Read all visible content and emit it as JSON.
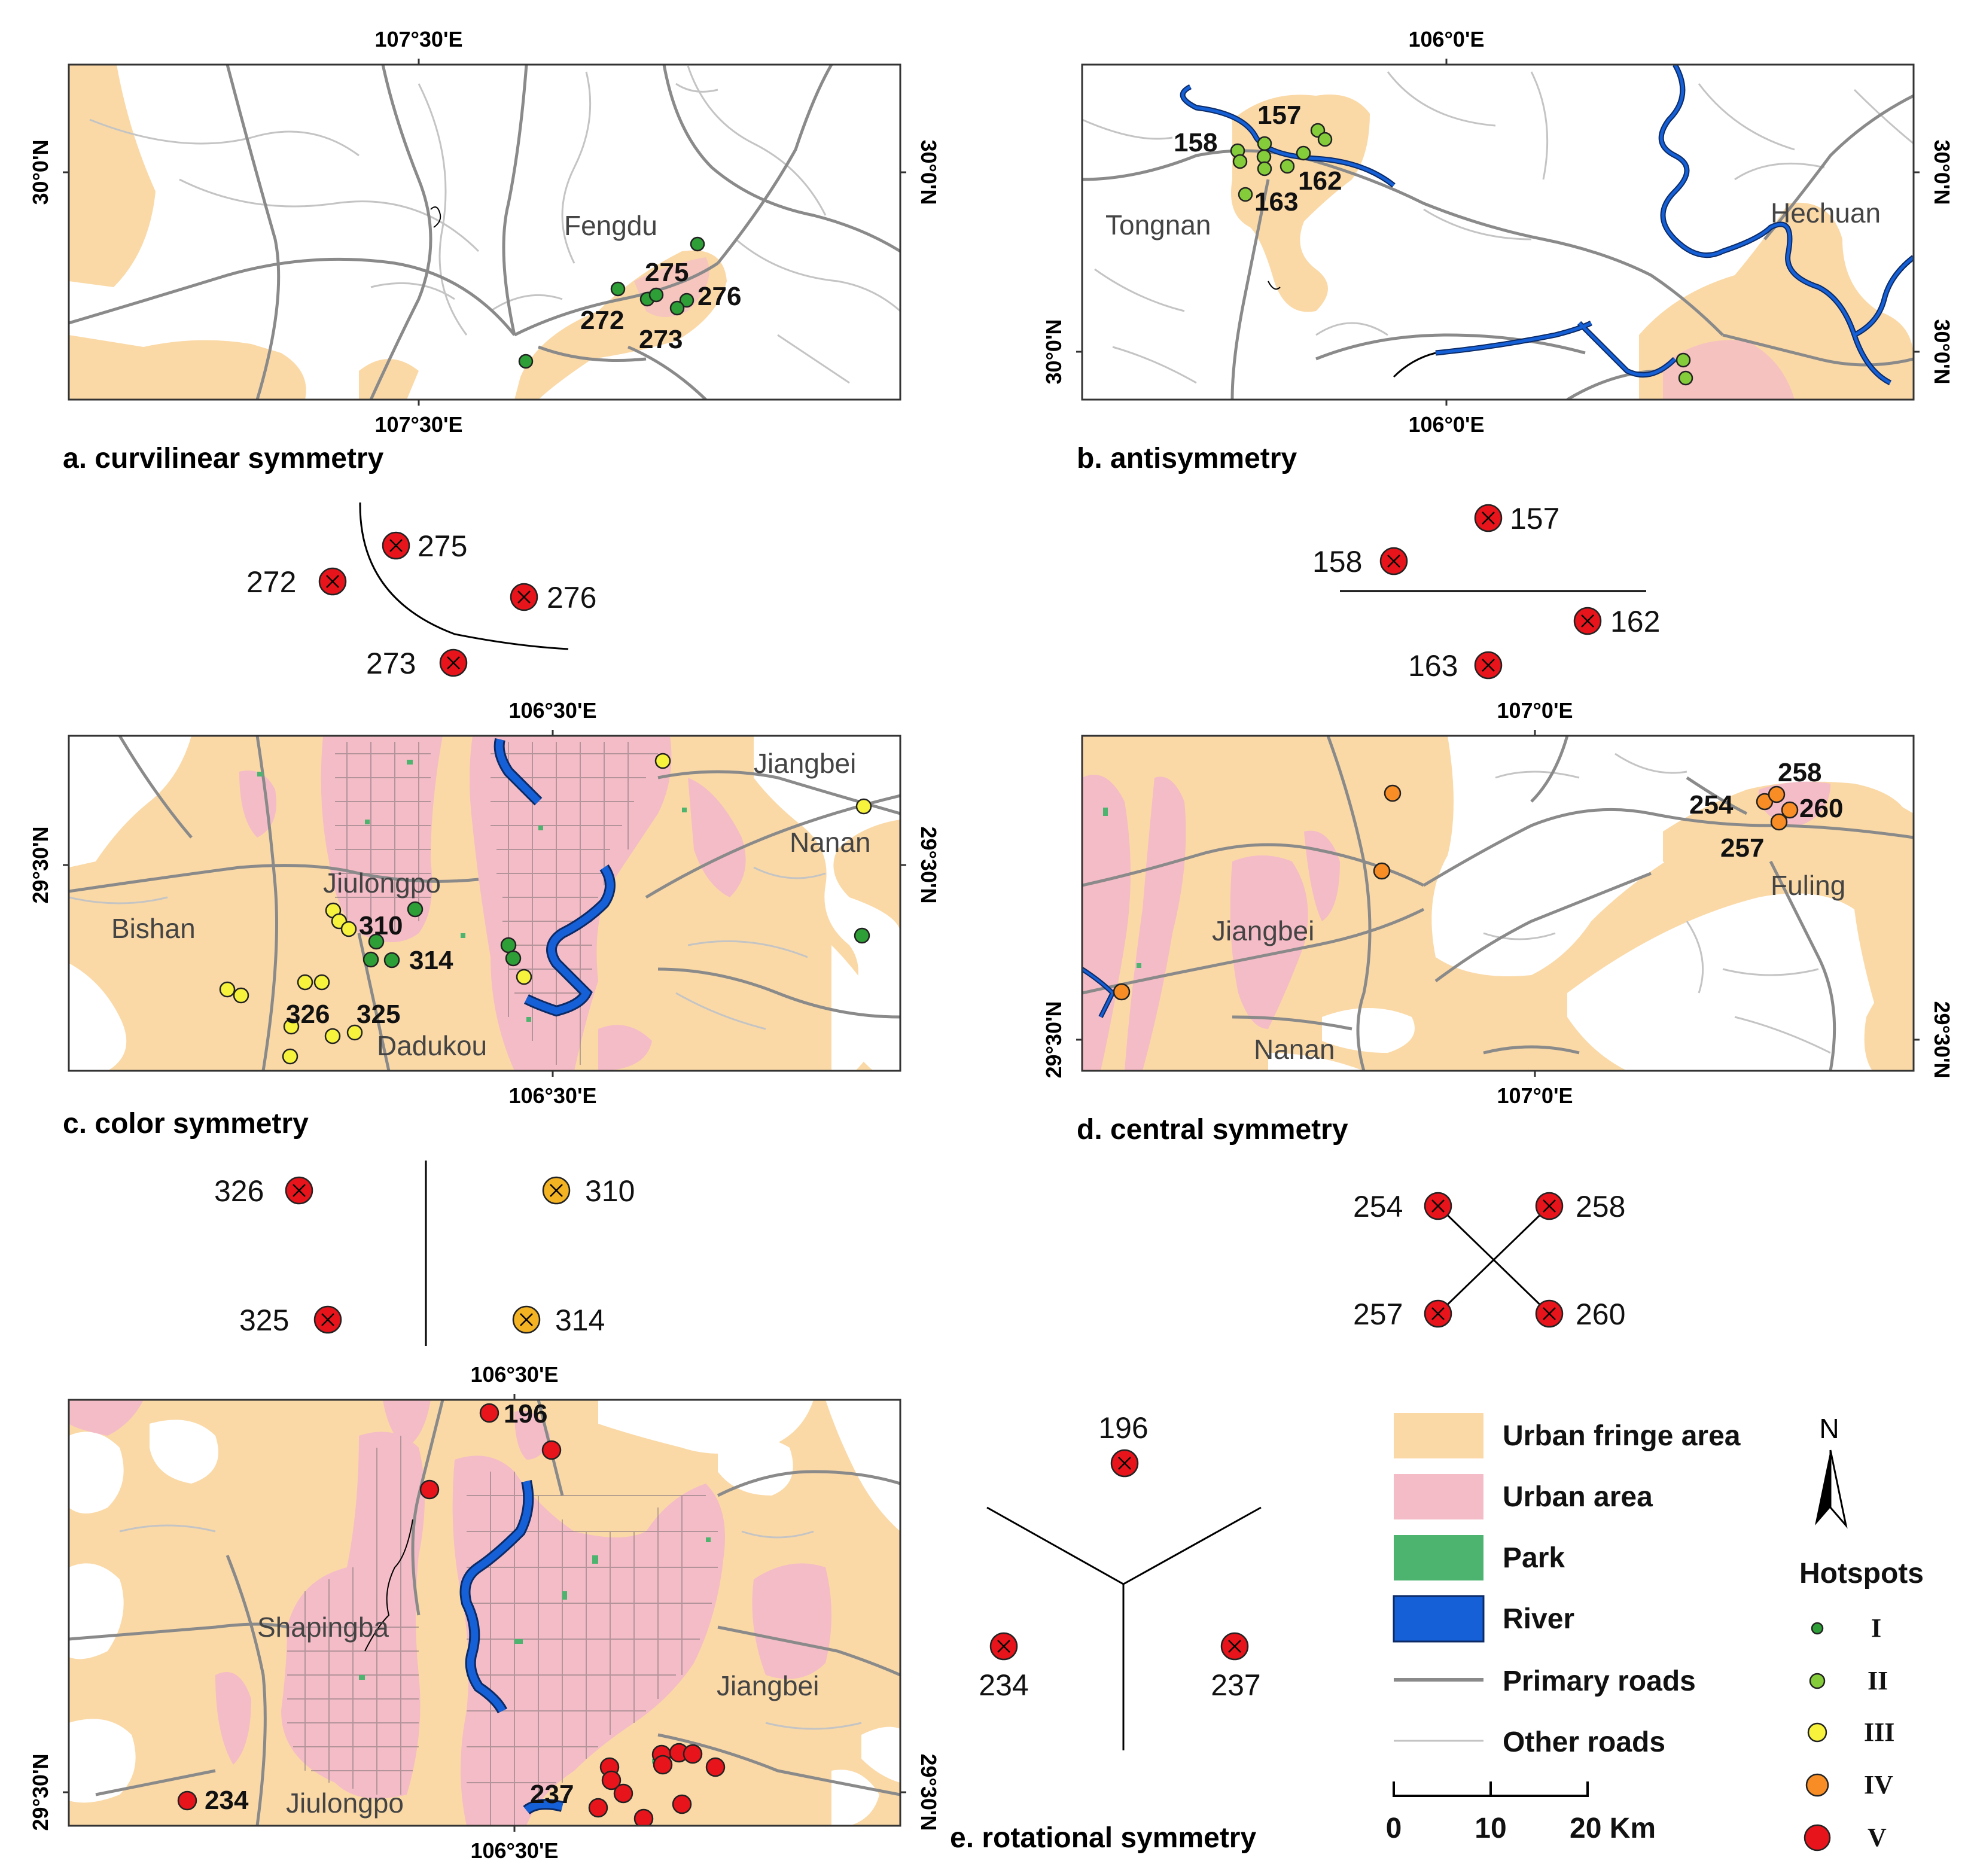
{
  "panels": {
    "a": {
      "caption": "a. curvilinear symmetry",
      "top_lon": "107°30'E",
      "bottom_lon": "107°30'E",
      "left_lat": "30°0'N",
      "right_lat": "30°0'N",
      "place_labels": [
        "Fengdu"
      ],
      "hotspot_labels": [
        "275",
        "276",
        "272",
        "273"
      ],
      "diagram_labels": [
        "275",
        "272",
        "276",
        "273"
      ]
    },
    "b": {
      "caption": "b. antisymmetry",
      "top_lon": "106°0'E",
      "bottom_lon": "106°0'E",
      "left_lat": "30°0'N",
      "right_lat_top": "30°0'N",
      "right_lat_bottom": "30°0'N",
      "place_labels": [
        "Tongnan",
        "Hechuan"
      ],
      "hotspot_labels": [
        "157",
        "158",
        "162",
        "163"
      ],
      "diagram_labels": [
        "157",
        "158",
        "162",
        "163"
      ]
    },
    "c": {
      "caption": "c. color symmetry",
      "top_lon": "106°30'E",
      "bottom_lon": "106°30'E",
      "left_lat": "29°30'N",
      "right_lat": "29°30'N",
      "place_labels": [
        "Jiangbei",
        "Jiulongpo",
        "Bishan",
        "Nanan",
        "Dadukou"
      ],
      "hotspot_labels": [
        "310",
        "314",
        "326",
        "325"
      ],
      "diagram_labels": [
        "326",
        "310",
        "325",
        "314"
      ]
    },
    "d": {
      "caption": "d. central symmetry",
      "top_lon": "107°0'E",
      "bottom_lon": "107°0'E",
      "left_lat": "29°30'N",
      "right_lat": "29°30'N",
      "place_labels": [
        "Jiangbei",
        "Fuling",
        "Nanan"
      ],
      "hotspot_labels": [
        "258",
        "254",
        "260",
        "257"
      ],
      "diagram_labels": [
        "254",
        "258",
        "257",
        "260"
      ]
    },
    "e": {
      "caption": "e. rotational symmetry",
      "top_lon": "106°30'E",
      "bottom_lon": "106°30'E",
      "left_lat": "29°30'N",
      "right_lat": "29°30'N",
      "place_labels": [
        "Shapingba",
        "Jiangbei",
        "Jiulongpo"
      ],
      "hotspot_labels": [
        "196",
        "234",
        "237"
      ],
      "diagram_labels": [
        "196",
        "234",
        "237"
      ]
    }
  },
  "legend": {
    "items": [
      "Urban fringe area",
      "Urban area",
      "Park",
      "River",
      "Primary roads",
      "Other roads"
    ],
    "hotspots_title": "Hotspots",
    "hotspot_classes": [
      "I",
      "II",
      "III",
      "IV",
      "V"
    ],
    "north": "N",
    "scale": [
      "0",
      "10",
      "20 Km"
    ]
  },
  "colors": {
    "fringe": "#fad9a7",
    "urban": "#f4bcc6",
    "park": "#4cb46e",
    "river": "#1560d6",
    "primary_road": "#8a8a8a",
    "other_road": "#c4c4c4",
    "class_I": "#2e9e37",
    "class_II": "#84cc3a",
    "class_III": "#f7f23c",
    "class_IV": "#f78d24",
    "class_V": "#e8141b"
  }
}
